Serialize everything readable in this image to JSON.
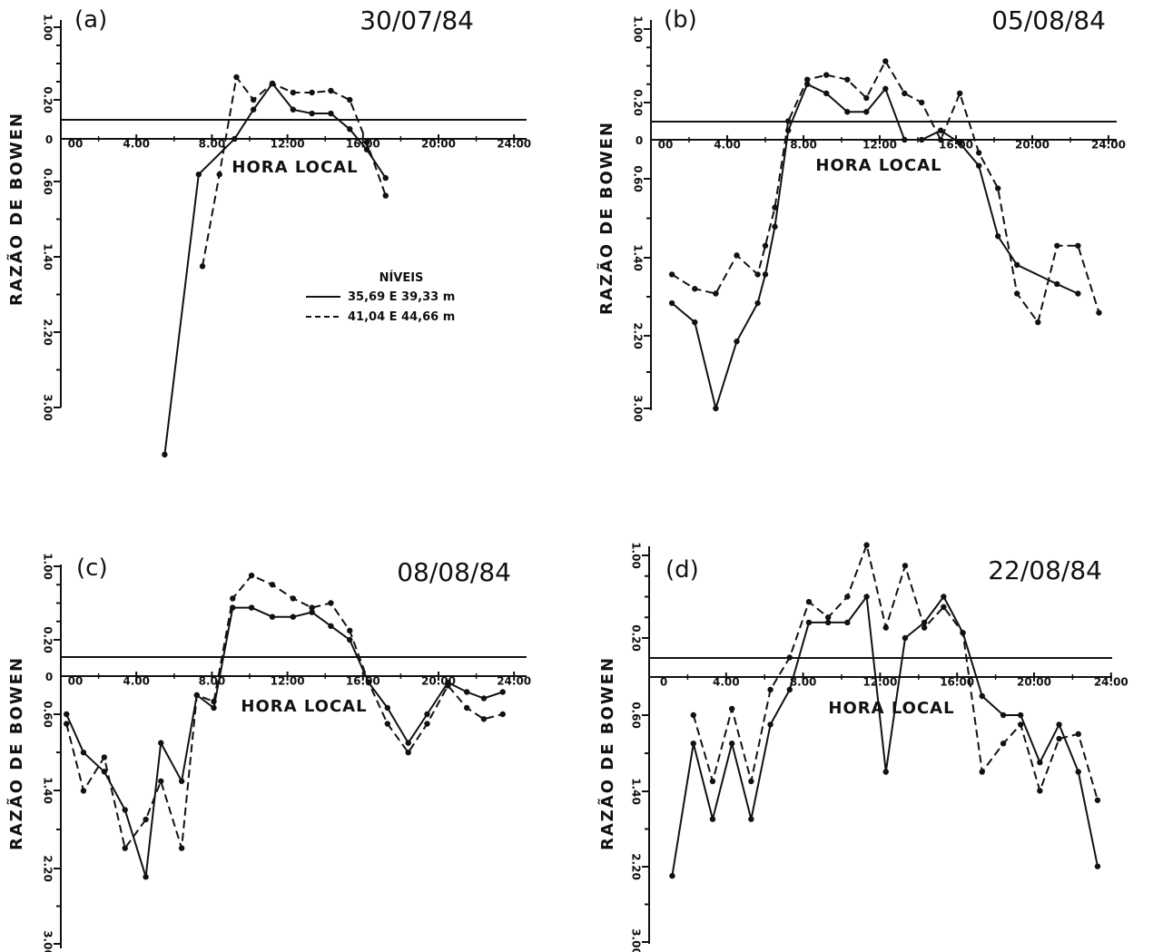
{
  "chart_data": [
    {
      "type": "line",
      "panel_label": "(a)",
      "title": "30/07/84",
      "xlabel": "HORA LOCAL",
      "ylabel": "RAZÃO DE BOWEN",
      "x_ticks": [
        "00",
        "4.00",
        "8.00",
        "12.00",
        "16.00",
        "20.00",
        "24.00"
      ],
      "y_ticks_top": [
        "1.00",
        "0.20"
      ],
      "y_tick_zero": "0",
      "y_ticks_bottom": [
        "0.60",
        "1.40",
        "2.20",
        "3.00"
      ],
      "xlim": [
        0,
        24
      ],
      "legend": {
        "title": "NÍVEIS",
        "placement": "right-center"
      },
      "series": [
        {
          "name": "35,69 E 39,33 m",
          "style": "solid",
          "x": [
            5.5,
            7.3,
            9.2,
            10.2,
            11.2,
            12.3,
            13.3,
            14.3,
            15.3,
            16.2,
            17.2
          ],
          "y": [
            -3.5,
            -0.5,
            0.0,
            0.15,
            0.38,
            0.15,
            0.13,
            0.13,
            0.05,
            -0.15,
            -0.55
          ]
        },
        {
          "name": "41,04 E 44,66 m",
          "style": "dashed",
          "x": [
            7.5,
            8.4,
            9.3,
            10.2,
            11.2,
            12.3,
            13.3,
            14.3,
            15.3,
            16.2,
            17.2
          ],
          "y": [
            -1.5,
            -0.5,
            0.45,
            0.2,
            0.38,
            0.28,
            0.28,
            0.3,
            0.2,
            -0.05,
            -0.75
          ]
        }
      ]
    },
    {
      "type": "line",
      "panel_label": "(b)",
      "title": "05/08/84",
      "xlabel": "HORA LOCAL",
      "ylabel": "RAZÃO DE BOWEN",
      "x_ticks": [
        "00",
        "4.00",
        "8.00",
        "12.00",
        "16.00",
        "20.00",
        "24.00"
      ],
      "y_ticks_top": [
        "1.00",
        "0.20"
      ],
      "y_tick_zero": "0",
      "y_ticks_bottom": [
        "0.60",
        "1.40",
        "2.20",
        "3.00"
      ],
      "xlim": [
        0,
        24
      ],
      "series": [
        {
          "name": "35,69 E 39,33 m",
          "style": "solid",
          "x": [
            1.1,
            2.3,
            3.4,
            4.5,
            5.6,
            6.0,
            6.5,
            7.2,
            8.2,
            9.2,
            10.3,
            11.3,
            12.3,
            13.3,
            14.2,
            15.2,
            16.2,
            17.2,
            18.2,
            19.2,
            21.3,
            22.4
          ],
          "y": [
            -1.9,
            -2.1,
            -3.0,
            -2.3,
            -1.9,
            -1.6,
            -1.1,
            0.05,
            0.4,
            0.3,
            0.15,
            0.15,
            0.35,
            0.0,
            0.0,
            0.05,
            -0.05,
            -0.4,
            -1.2,
            -1.5,
            -1.7,
            -1.8
          ]
        },
        {
          "name": "41,04 E 44,66 m",
          "style": "dashed",
          "x": [
            1.1,
            2.3,
            3.4,
            4.5,
            5.6,
            6.0,
            6.5,
            7.2,
            8.2,
            9.2,
            10.3,
            11.3,
            12.3,
            13.3,
            14.2,
            15.2,
            16.2,
            17.2,
            18.2,
            19.2,
            20.3,
            21.3,
            22.4,
            23.5
          ],
          "y": [
            -1.6,
            -1.75,
            -1.8,
            -1.4,
            -1.6,
            -1.3,
            -0.9,
            0.1,
            0.45,
            0.5,
            0.45,
            0.25,
            0.65,
            0.3,
            0.2,
            0.0,
            0.3,
            -0.2,
            -0.7,
            -1.8,
            -2.1,
            -1.3,
            -1.3,
            -2.0
          ]
        }
      ]
    },
    {
      "type": "line",
      "panel_label": "(c)",
      "title": "08/08/84",
      "xlabel": "HORA LOCAL",
      "ylabel": "RAZÃO DE BOWEN",
      "x_ticks": [
        "00",
        "4.00",
        "8.00",
        "12.00",
        "16.00",
        "20.00",
        "24.00"
      ],
      "y_ticks_top": [
        "1.00",
        "0.20"
      ],
      "y_tick_zero": "0",
      "y_ticks_bottom": [
        "0.60",
        "1.40",
        "2.20",
        "3.00"
      ],
      "xlim": [
        0,
        24
      ],
      "series": [
        {
          "name": "35,69 E 39,33 m",
          "style": "solid",
          "x": [
            0.3,
            1.2,
            2.3,
            3.4,
            4.5,
            5.3,
            6.4,
            7.2,
            8.1,
            9.1,
            10.1,
            11.2,
            12.3,
            13.3,
            14.3,
            15.3,
            16.3,
            17.3,
            18.4,
            19.4,
            20.5,
            21.5,
            22.4,
            23.4
          ],
          "y": [
            -0.6,
            -1.0,
            -1.2,
            -1.6,
            -2.3,
            -0.9,
            -1.3,
            -0.3,
            -0.5,
            0.55,
            0.55,
            0.45,
            0.45,
            0.5,
            0.35,
            0.2,
            -0.1,
            -0.5,
            -0.9,
            -0.6,
            -0.1,
            -0.25,
            -0.35,
            -0.25
          ]
        },
        {
          "name": "41,04 E 44,66 m",
          "style": "dashed",
          "x": [
            0.3,
            1.2,
            2.3,
            3.4,
            4.5,
            5.3,
            6.4,
            7.2,
            8.1,
            9.1,
            10.1,
            11.2,
            12.3,
            13.3,
            14.3,
            15.3,
            16.3,
            17.3,
            18.4,
            19.4,
            20.5,
            21.5,
            22.4,
            23.4
          ],
          "y": [
            -0.7,
            -1.4,
            -1.05,
            -2.0,
            -1.7,
            -1.3,
            -2.0,
            -0.3,
            -0.4,
            0.65,
            0.9,
            0.8,
            0.65,
            0.55,
            0.6,
            0.3,
            -0.1,
            -0.7,
            -1.0,
            -0.7,
            -0.15,
            -0.5,
            -0.65,
            -0.6
          ]
        }
      ]
    },
    {
      "type": "line",
      "panel_label": "(d)",
      "title": "22/08/84",
      "xlabel": "HORA LOCAL",
      "ylabel": "RAZÃO DE BOWEN",
      "x_ticks": [
        "0",
        "4.00",
        "8.00",
        "12.00",
        "16.00",
        "20.00",
        "24.00"
      ],
      "y_ticks_top": [
        "1.00",
        "0.20"
      ],
      "y_tick_zero": "",
      "y_ticks_bottom": [
        "0.60",
        "1.40",
        "2.20",
        "3.00"
      ],
      "xlim": [
        0,
        24
      ],
      "series": [
        {
          "name": "35,69 E 39,33 m",
          "style": "solid",
          "x": [
            1.2,
            2.3,
            3.3,
            4.3,
            5.3,
            6.3,
            7.3,
            8.3,
            9.3,
            10.3,
            11.3,
            12.3,
            13.3,
            14.3,
            15.3,
            16.3,
            17.3,
            18.4,
            19.3,
            20.3,
            21.3,
            22.3,
            23.3
          ],
          "y": [
            -2.3,
            -0.9,
            -1.7,
            -0.9,
            -1.7,
            -0.7,
            -0.2,
            0.35,
            0.35,
            0.35,
            0.6,
            -1.2,
            0.2,
            0.35,
            0.6,
            0.25,
            -0.3,
            -0.6,
            -0.6,
            -1.1,
            -0.7,
            -1.2,
            -2.2
          ]
        },
        {
          "name": "41,04 E 44,66 m",
          "style": "dashed",
          "x": [
            2.3,
            3.3,
            4.3,
            5.3,
            6.3,
            7.3,
            8.3,
            9.3,
            10.3,
            11.3,
            12.3,
            13.3,
            14.3,
            15.3,
            16.3,
            17.3,
            18.4,
            19.3,
            20.3,
            21.3,
            22.3,
            23.3
          ],
          "y": [
            -0.6,
            -1.3,
            -0.5,
            -1.3,
            -0.2,
            0.1,
            0.55,
            0.4,
            0.6,
            1.1,
            0.3,
            0.9,
            0.3,
            0.5,
            0.25,
            -1.2,
            -0.9,
            -0.7,
            -1.4,
            -0.85,
            -0.8,
            -1.5
          ]
        }
      ]
    }
  ]
}
